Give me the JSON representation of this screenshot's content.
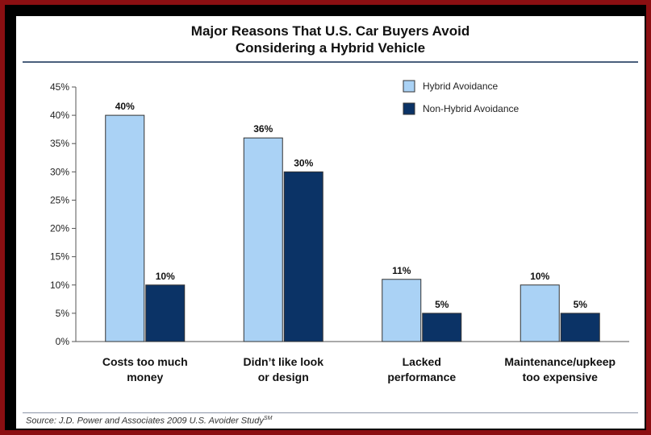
{
  "colors": {
    "hybrid": "#aad2f5",
    "non_hybrid": "#0b3366",
    "frame": "#8b0f12"
  },
  "source_text": "Source: J.D. Power and Associates 2009 U.S. Avoider Study",
  "source_superscript": "SM",
  "chart_data": {
    "type": "bar",
    "title": [
      "Major Reasons That U.S. Car Buyers Avoid",
      "Considering a Hybrid Vehicle"
    ],
    "categories": [
      [
        "Costs too much",
        "money"
      ],
      [
        "Didn’t like look",
        "or design"
      ],
      [
        "Lacked",
        "performance"
      ],
      [
        "Maintenance/upkeep",
        "too expensive"
      ]
    ],
    "series": [
      {
        "name": "Hybrid Avoidance",
        "values": [
          40,
          36,
          11,
          10
        ],
        "labels": [
          "40%",
          "36%",
          "11%",
          "10%"
        ]
      },
      {
        "name": "Non-Hybrid Avoidance",
        "values": [
          10,
          30,
          5,
          5
        ],
        "labels": [
          "10%",
          "30%",
          "5%",
          "5%"
        ]
      }
    ],
    "ylim": [
      0,
      45
    ],
    "yticks": [
      "0%",
      "5%",
      "10%",
      "15%",
      "20%",
      "25%",
      "30%",
      "35%",
      "40%",
      "45%"
    ],
    "legend": "top-right",
    "grid": false
  }
}
